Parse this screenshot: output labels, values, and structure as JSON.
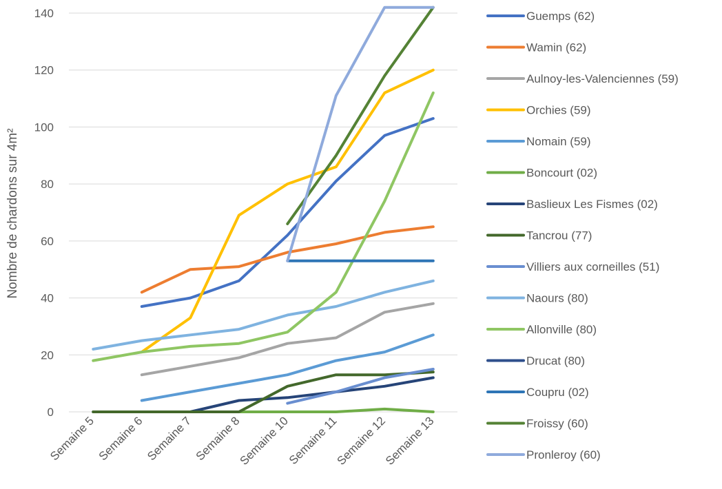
{
  "chart_data": {
    "type": "line",
    "title": "",
    "xlabel": "",
    "ylabel": "Nombre de chardons sur 4m²",
    "ylim": [
      0,
      140
    ],
    "yticks": [
      "0",
      "20",
      "40",
      "60",
      "80",
      "100",
      "120",
      "140"
    ],
    "categories": [
      "Semaine 5",
      "Semaine 6",
      "Semaine 7",
      "Semaine 8",
      "Semaine 10",
      "Semaine 11",
      "Semaine 12",
      "Semaine 13"
    ],
    "grid": true,
    "legend_position": "right",
    "series": [
      {
        "name": "Guemps (62)",
        "color": "#4472C4",
        "values": [
          null,
          37,
          40,
          46,
          62,
          81,
          97,
          103
        ]
      },
      {
        "name": "Wamin (62)",
        "color": "#ED7D31",
        "values": [
          null,
          42,
          50,
          51,
          56,
          59,
          63,
          65
        ]
      },
      {
        "name": "Aulnoy-les-Valenciennes (59)",
        "color": "#A5A5A5",
        "values": [
          null,
          13,
          16,
          19,
          24,
          26,
          35,
          38
        ]
      },
      {
        "name": "Orchies (59)",
        "color": "#FFC000",
        "values": [
          null,
          21,
          33,
          69,
          80,
          86,
          112,
          120
        ]
      },
      {
        "name": "Nomain (59)",
        "color": "#5B9BD5",
        "values": [
          null,
          4,
          7,
          10,
          13,
          18,
          21,
          27
        ]
      },
      {
        "name": "Boncourt (02)",
        "color": "#70AD47",
        "values": [
          0,
          0,
          0,
          0,
          0,
          0,
          1,
          0
        ]
      },
      {
        "name": "Baslieux Les Fismes (02)",
        "color": "#264478",
        "values": [
          0,
          0,
          0,
          4,
          5,
          7,
          9,
          12
        ]
      },
      {
        "name": "Tancrou (77)",
        "color": "#43682B",
        "values": [
          0,
          0,
          0,
          0,
          9,
          13,
          13,
          14
        ]
      },
      {
        "name": "Villiers aux corneilles (51)",
        "color": "#698ED0",
        "values": [
          null,
          null,
          null,
          null,
          3,
          7,
          12,
          15
        ]
      },
      {
        "name": "Naours (80)",
        "color": "#7FB3E0",
        "values": [
          22,
          25,
          27,
          29,
          34,
          37,
          42,
          46
        ]
      },
      {
        "name": "Allonville (80)",
        "color": "#8FC663",
        "values": [
          18,
          21,
          23,
          24,
          28,
          42,
          74,
          112
        ]
      },
      {
        "name": "Drucat (80)",
        "color": "#2E4F8C",
        "values": [
          null,
          null,
          null,
          null,
          null,
          null,
          null,
          null
        ]
      },
      {
        "name": "Coupru (02)",
        "color": "#2E75B6",
        "values": [
          null,
          null,
          null,
          null,
          53,
          53,
          53,
          53
        ]
      },
      {
        "name": "Froissy (60)",
        "color": "#548235",
        "values": [
          null,
          null,
          null,
          null,
          66,
          90,
          118,
          145
        ]
      },
      {
        "name": "Pronleroy (60)",
        "color": "#8FAADC",
        "values": [
          null,
          null,
          null,
          null,
          53,
          111,
          143,
          143
        ]
      }
    ]
  }
}
